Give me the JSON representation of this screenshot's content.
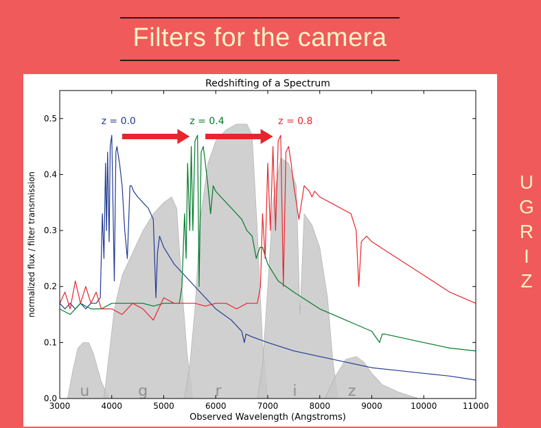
{
  "slide": {
    "title": "Filters for the camera",
    "side_letters": [
      "U",
      "G",
      "R",
      "I",
      "Z"
    ]
  },
  "colors": {
    "background": "#f05a5a",
    "title_text": "#fff3c8",
    "filter_fill": "#c8c8c8",
    "series_blue": "#1f3a93",
    "series_green": "#007a2a",
    "series_red": "#e8242c",
    "arrow": "#e8242c"
  },
  "chart_data": {
    "type": "line",
    "title": "Redshifting of a Spectrum",
    "xlabel": "Observed Wavelength (Angstroms)",
    "ylabel": "normalized flux / filter transmission",
    "xlim": [
      3000,
      11000
    ],
    "ylim": [
      0.0,
      0.55
    ],
    "xticks": [
      3000,
      4000,
      5000,
      6000,
      7000,
      8000,
      9000,
      10000,
      11000
    ],
    "yticks": [
      0.0,
      0.1,
      0.2,
      0.3,
      0.4,
      0.5
    ],
    "ytick_labels": [
      "0.0",
      "0.1",
      "0.2",
      "0.3",
      "0.4",
      "0.5"
    ],
    "grid": false,
    "annotations": [
      {
        "text": "z = 0.0",
        "x": 3800,
        "y": 0.49,
        "color": "#1f3a93"
      },
      {
        "text": "z = 0.4",
        "x": 5500,
        "y": 0.49,
        "color": "#007a2a"
      },
      {
        "text": "z = 0.8",
        "x": 7200,
        "y": 0.49,
        "color": "#e8242c"
      }
    ],
    "arrows": [
      {
        "x_from": 4200,
        "x_to": 5500,
        "y": 0.468
      },
      {
        "x_from": 5800,
        "x_to": 7100,
        "y": 0.468
      }
    ],
    "filters": [
      {
        "name": "u",
        "label_x": 3480,
        "points": [
          [
            3000,
            0.0
          ],
          [
            3150,
            0.0
          ],
          [
            3250,
            0.05
          ],
          [
            3350,
            0.09
          ],
          [
            3450,
            0.1
          ],
          [
            3560,
            0.1
          ],
          [
            3650,
            0.08
          ],
          [
            3800,
            0.03
          ],
          [
            3950,
            0.0
          ]
        ]
      },
      {
        "name": "g",
        "label_x": 4600,
        "points": [
          [
            3850,
            0.0
          ],
          [
            3950,
            0.08
          ],
          [
            4050,
            0.16
          ],
          [
            4200,
            0.22
          ],
          [
            4400,
            0.26
          ],
          [
            4600,
            0.3
          ],
          [
            4800,
            0.33
          ],
          [
            5000,
            0.35
          ],
          [
            5150,
            0.36
          ],
          [
            5250,
            0.34
          ],
          [
            5350,
            0.2
          ],
          [
            5450,
            0.08
          ],
          [
            5560,
            0.0
          ]
        ]
      },
      {
        "name": "r",
        "label_x": 6050,
        "points": [
          [
            5400,
            0.0
          ],
          [
            5500,
            0.06
          ],
          [
            5600,
            0.16
          ],
          [
            5700,
            0.32
          ],
          [
            5850,
            0.42
          ],
          [
            6000,
            0.46
          ],
          [
            6200,
            0.48
          ],
          [
            6400,
            0.49
          ],
          [
            6600,
            0.49
          ],
          [
            6700,
            0.47
          ],
          [
            6800,
            0.3
          ],
          [
            6900,
            0.1
          ],
          [
            7000,
            0.0
          ]
        ]
      },
      {
        "name": "i",
        "label_x": 7520,
        "points": [
          [
            6800,
            0.0
          ],
          [
            6900,
            0.06
          ],
          [
            7000,
            0.2
          ],
          [
            7100,
            0.35
          ],
          [
            7250,
            0.43
          ],
          [
            7400,
            0.42
          ],
          [
            7550,
            0.38
          ],
          [
            7620,
            0.15
          ],
          [
            7700,
            0.33
          ],
          [
            7850,
            0.31
          ],
          [
            8000,
            0.27
          ],
          [
            8150,
            0.18
          ],
          [
            8250,
            0.07
          ],
          [
            8350,
            0.0
          ]
        ]
      },
      {
        "name": "z",
        "label_x": 8620,
        "points": [
          [
            8100,
            0.0
          ],
          [
            8300,
            0.04
          ],
          [
            8500,
            0.07
          ],
          [
            8700,
            0.075
          ],
          [
            8850,
            0.065
          ],
          [
            9000,
            0.045
          ],
          [
            9200,
            0.025
          ],
          [
            9500,
            0.012
          ],
          [
            9900,
            0.0
          ]
        ]
      }
    ],
    "series": [
      {
        "name": "z = 0.0",
        "color": "#1f3a93",
        "x": [
          3000,
          3100,
          3200,
          3300,
          3400,
          3500,
          3600,
          3700,
          3780,
          3820,
          3850,
          3880,
          3900,
          3920,
          3950,
          3970,
          4000,
          4050,
          4080,
          4100,
          4150,
          4200,
          4250,
          4300,
          4350,
          4380,
          4420,
          4500,
          4600,
          4700,
          4800,
          4850,
          4880,
          4920,
          5000,
          5200,
          5400,
          5700,
          6000,
          6300,
          6500,
          6550,
          6580,
          6700,
          7000,
          7500,
          8000,
          8500,
          9000,
          9500,
          10000,
          10500,
          11000
        ],
        "y": [
          0.17,
          0.16,
          0.17,
          0.16,
          0.17,
          0.16,
          0.17,
          0.17,
          0.18,
          0.33,
          0.25,
          0.42,
          0.3,
          0.44,
          0.28,
          0.45,
          0.47,
          0.21,
          0.44,
          0.45,
          0.42,
          0.38,
          0.3,
          0.25,
          0.38,
          0.38,
          0.37,
          0.36,
          0.35,
          0.34,
          0.32,
          0.18,
          0.26,
          0.29,
          0.27,
          0.24,
          0.22,
          0.19,
          0.16,
          0.14,
          0.12,
          0.1,
          0.115,
          0.11,
          0.1,
          0.085,
          0.075,
          0.065,
          0.055,
          0.05,
          0.045,
          0.04,
          0.033
        ]
      },
      {
        "name": "z = 0.4",
        "color": "#007a2a",
        "x": [
          3000,
          3200,
          3400,
          3600,
          3800,
          4000,
          4200,
          4400,
          4600,
          4800,
          5000,
          5200,
          5300,
          5350,
          5400,
          5430,
          5460,
          5500,
          5530,
          5560,
          5600,
          5650,
          5680,
          5720,
          5760,
          5800,
          5850,
          5900,
          5950,
          6000,
          6100,
          6200,
          6300,
          6400,
          6500,
          6600,
          6700,
          6780,
          6850,
          6900,
          7000,
          7200,
          7500,
          8000,
          8500,
          9000,
          9150,
          9200,
          9250,
          9500,
          10000,
          10500,
          11000
        ],
        "y": [
          0.16,
          0.15,
          0.17,
          0.16,
          0.16,
          0.17,
          0.17,
          0.17,
          0.17,
          0.165,
          0.17,
          0.17,
          0.17,
          0.2,
          0.33,
          0.25,
          0.42,
          0.3,
          0.45,
          0.3,
          0.46,
          0.47,
          0.2,
          0.44,
          0.45,
          0.42,
          0.38,
          0.33,
          0.38,
          0.37,
          0.36,
          0.35,
          0.34,
          0.33,
          0.32,
          0.3,
          0.29,
          0.25,
          0.27,
          0.27,
          0.24,
          0.21,
          0.19,
          0.16,
          0.14,
          0.12,
          0.1,
          0.115,
          0.115,
          0.11,
          0.1,
          0.09,
          0.085
        ]
      },
      {
        "name": "z = 0.8",
        "color": "#e8242c",
        "x": [
          3000,
          3100,
          3200,
          3300,
          3400,
          3500,
          3600,
          3700,
          3800,
          4000,
          4200,
          4400,
          4600,
          4800,
          5000,
          5200,
          5400,
          5600,
          5800,
          6000,
          6200,
          6400,
          6600,
          6800,
          6860,
          6900,
          6950,
          7000,
          7050,
          7100,
          7150,
          7200,
          7250,
          7300,
          7350,
          7400,
          7450,
          7500,
          7600,
          7700,
          7800,
          7850,
          7900,
          8000,
          8200,
          8400,
          8600,
          8700,
          8750,
          8800,
          8900,
          9000,
          9500,
          10000,
          10500,
          11000
        ],
        "y": [
          0.17,
          0.19,
          0.16,
          0.21,
          0.17,
          0.2,
          0.17,
          0.19,
          0.16,
          0.16,
          0.15,
          0.17,
          0.16,
          0.14,
          0.18,
          0.17,
          0.17,
          0.17,
          0.165,
          0.17,
          0.17,
          0.16,
          0.17,
          0.17,
          0.2,
          0.33,
          0.25,
          0.42,
          0.3,
          0.45,
          0.3,
          0.46,
          0.47,
          0.2,
          0.44,
          0.45,
          0.42,
          0.38,
          0.32,
          0.38,
          0.37,
          0.36,
          0.37,
          0.36,
          0.35,
          0.34,
          0.33,
          0.3,
          0.2,
          0.28,
          0.29,
          0.28,
          0.25,
          0.22,
          0.19,
          0.17
        ]
      }
    ]
  }
}
